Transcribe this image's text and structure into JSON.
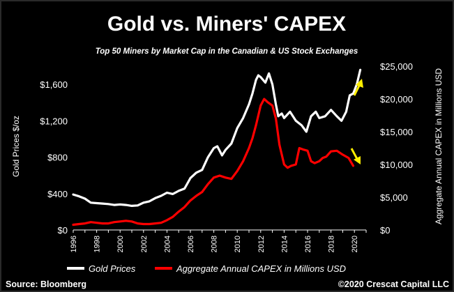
{
  "title": "Gold vs. Miners' CAPEX",
  "subtitle": "Top 50 Miners by Market Cap in the Canadian & US Stock Exchanges",
  "source": "Source: Bloomberg",
  "copyright": "©2020 Crescat Capital LLC",
  "colors": {
    "gold": "#ffffff",
    "capex": "#ff0000",
    "arrow": "#ffee00",
    "background": "#000000"
  },
  "chart_data": {
    "type": "line",
    "xlabel": "",
    "ylabel": "Gold Prices $/oz",
    "y2label": "Aggregate Annual CAPEX in Millions USD",
    "xlim": [
      1996,
      2021
    ],
    "ylim": [
      0,
      1800
    ],
    "y2lim": [
      0,
      25000
    ],
    "x_ticks": [
      "1996",
      "1997",
      "1998",
      "1999",
      "2000",
      "2001",
      "2002",
      "2003",
      "2004",
      "2005",
      "2006",
      "2007",
      "2008",
      "2009",
      "2010",
      "2011",
      "2012",
      "2013",
      "2014",
      "2015",
      "2016",
      "2017",
      "2018",
      "2019",
      "2020",
      "2021"
    ],
    "x_tick_labels": [
      "1996",
      "",
      "1998",
      "",
      "2000",
      "",
      "2002",
      "",
      "2004",
      "",
      "2006",
      "",
      "2008",
      "",
      "2010",
      "",
      "2012",
      "",
      "2014",
      "",
      "2016",
      "",
      "2018",
      "",
      "2020",
      ""
    ],
    "y_ticks": [
      "$0",
      "$400",
      "$800",
      "$1,200",
      "$1,600"
    ],
    "y_tick_values": [
      0,
      400,
      800,
      1200,
      1600
    ],
    "y2_ticks": [
      "$0",
      "$5,000",
      "$10,000",
      "$15,000",
      "$20,000",
      "$25,000"
    ],
    "y2_tick_values": [
      0,
      5000,
      10000,
      15000,
      20000,
      25000
    ],
    "legend_position": "bottom",
    "series": [
      {
        "name": "Gold Prices",
        "axis": "left",
        "x": [
          1996,
          1996.5,
          1997,
          1997.5,
          1998,
          1998.5,
          1999,
          1999.5,
          2000,
          2000.5,
          2001,
          2001.5,
          2002,
          2002.5,
          2003,
          2003.5,
          2004,
          2004.5,
          2005,
          2005.5,
          2006,
          2006.5,
          2007,
          2007.5,
          2008,
          2008.3,
          2008.7,
          2009,
          2009.5,
          2010,
          2010.5,
          2011,
          2011.3,
          2011.6,
          2011.8,
          2012,
          2012.4,
          2012.7,
          2013,
          2013.3,
          2013.5,
          2013.8,
          2014,
          2014.5,
          2015,
          2015.5,
          2015.9,
          2016.3,
          2016.7,
          2017,
          2017.5,
          2018,
          2018.5,
          2018.9,
          2019.3,
          2019.6,
          2019.9,
          2020.2,
          2020.5
        ],
        "values": [
          390,
          370,
          345,
          300,
          295,
          290,
          285,
          275,
          280,
          275,
          265,
          270,
          300,
          315,
          350,
          375,
          410,
          395,
          430,
          455,
          570,
          630,
          660,
          800,
          900,
          920,
          820,
          880,
          950,
          1120,
          1230,
          1380,
          1500,
          1650,
          1700,
          1680,
          1620,
          1720,
          1600,
          1380,
          1250,
          1280,
          1230,
          1300,
          1200,
          1150,
          1080,
          1250,
          1300,
          1230,
          1250,
          1320,
          1250,
          1200,
          1300,
          1480,
          1500,
          1600,
          1760
        ]
      },
      {
        "name": "Aggregate Annual CAPEX in Millions USD",
        "axis": "right",
        "x": [
          1996,
          1996.5,
          1997,
          1997.5,
          1998,
          1998.5,
          1999,
          1999.5,
          2000,
          2000.5,
          2001,
          2001.5,
          2002,
          2002.5,
          2003,
          2003.5,
          2004,
          2004.5,
          2005,
          2005.5,
          2006,
          2006.5,
          2007,
          2007.5,
          2008,
          2008.5,
          2009,
          2009.5,
          2010,
          2010.5,
          2011,
          2011.3,
          2011.6,
          2012,
          2012.3,
          2012.6,
          2013,
          2013.3,
          2013.6,
          2014,
          2014.3,
          2014.6,
          2015,
          2015.3,
          2015.6,
          2016,
          2016.3,
          2016.6,
          2017,
          2017.3,
          2017.6,
          2018,
          2018.5,
          2019,
          2019.5,
          2019.9
        ],
        "values": [
          800,
          900,
          1000,
          1200,
          1100,
          1000,
          1000,
          1200,
          1300,
          1400,
          1300,
          1000,
          900,
          900,
          1000,
          1100,
          1500,
          2000,
          2800,
          3500,
          4500,
          5200,
          5800,
          7000,
          8000,
          8300,
          8000,
          7800,
          9000,
          10500,
          12500,
          14000,
          16000,
          19000,
          20000,
          19500,
          19000,
          17000,
          13000,
          10000,
          9500,
          9800,
          10000,
          12500,
          12300,
          12100,
          10500,
          10200,
          10500,
          11000,
          11200,
          12000,
          12100,
          11500,
          11000,
          9800
        ]
      }
    ],
    "annotations": [
      {
        "type": "arrow",
        "direction": "up",
        "near_series": "Gold Prices"
      },
      {
        "type": "arrow",
        "direction": "down",
        "near_series": "Aggregate Annual CAPEX in Millions USD"
      }
    ]
  }
}
